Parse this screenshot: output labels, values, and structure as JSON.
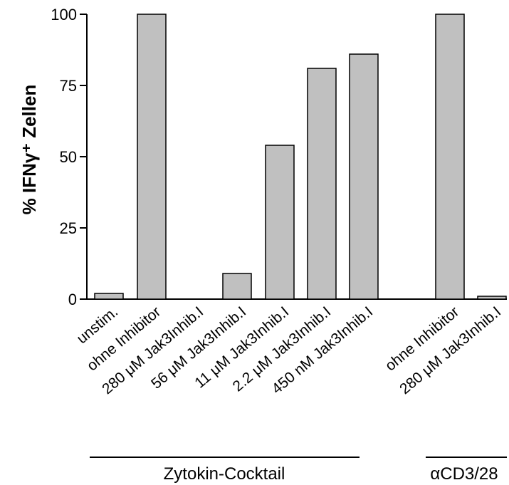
{
  "chart_data": {
    "type": "bar",
    "ylabel": "% IFNγ⁺ Zellen",
    "ylim": [
      0,
      100
    ],
    "yticks": [
      "0",
      "25",
      "50",
      "75",
      "100"
    ],
    "grid": false,
    "bar_color": "#c0c0c0",
    "categories": [
      "unstim.",
      "ohne Inhibitor",
      "280 μM Jak3Inhib.I",
      "56 μM Jak3Inhib.I",
      "11 μM Jak3Inhib.I",
      "2.2 μM Jak3Inhib.I",
      "450 nM Jak3Inhib.I",
      "ohne Inhibitor",
      "280 μM Jak3Inhib.I"
    ],
    "values": [
      2,
      100,
      0,
      9,
      54,
      81,
      86,
      100,
      1
    ],
    "groups": [
      {
        "label": "Zytokin-Cocktail"
      },
      {
        "label": "αCD3/28"
      }
    ]
  }
}
